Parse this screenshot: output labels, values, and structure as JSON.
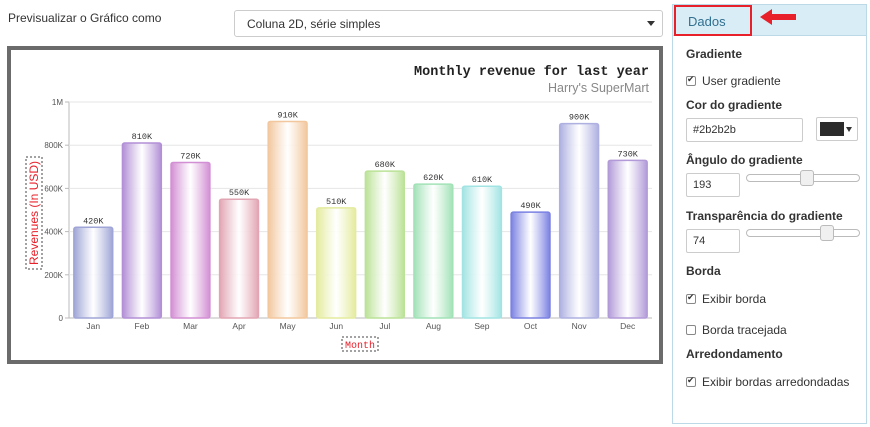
{
  "preview": {
    "label": "Previsualizar o Gráfico como",
    "selected": "Coluna 2D, série simples"
  },
  "panel": {
    "tab_label": "Dados",
    "gradient_title": "Gradiente",
    "use_gradient_label": "User gradiente",
    "use_gradient_checked": true,
    "gradient_color_title": "Cor do gradiente",
    "gradient_color_value": "#2b2b2b",
    "gradient_angle_title": "Ângulo do gradiente",
    "gradient_angle_value": "193",
    "gradient_angle_max": 360,
    "gradient_transparency_title": "Transparência do gradiente",
    "gradient_transparency_value": "74",
    "gradient_transparency_max": 100,
    "border_title": "Borda",
    "show_border_label": "Exibir borda",
    "show_border_checked": true,
    "dashed_border_label": "Borda tracejada",
    "dashed_border_checked": false,
    "rounding_title": "Arredondamento",
    "rounded_borders_label": "Exibir bordas arredondadas",
    "rounded_borders_checked": true
  },
  "colors": {
    "tab_highlight": "#e8202a",
    "panel_header_bg": "#d9edf7",
    "panel_tab_text": "#31708f",
    "chart_frame": "#6b6b6b"
  },
  "chart_data": {
    "type": "bar",
    "title": "Monthly revenue for last year",
    "subtitle": "Harry's SuperMart",
    "xlabel": "Month",
    "ylabel": "Revenues (In USD)",
    "ylim": [
      0,
      1000000
    ],
    "yticks": [
      0,
      200000,
      400000,
      600000,
      800000,
      1000000
    ],
    "ytick_labels": [
      "0",
      "200K",
      "400K",
      "600K",
      "800K",
      "1M"
    ],
    "categories": [
      "Jan",
      "Feb",
      "Mar",
      "Apr",
      "May",
      "Jun",
      "Jul",
      "Aug",
      "Sep",
      "Oct",
      "Nov",
      "Dec"
    ],
    "values": [
      420000,
      810000,
      720000,
      550000,
      910000,
      510000,
      680000,
      620000,
      610000,
      490000,
      900000,
      730000
    ],
    "value_labels": [
      "420K",
      "810K",
      "720K",
      "550K",
      "910K",
      "510K",
      "680K",
      "620K",
      "610K",
      "490K",
      "900K",
      "730K"
    ],
    "colors": [
      "#9fa5d6",
      "#b28fd6",
      "#d38fd4",
      "#e2a5b3",
      "#f2c79d",
      "#e4eb9e",
      "#bbe297",
      "#a2e2b7",
      "#a2e4e3",
      "#7b81e2",
      "#aeb0e1",
      "#b29ad9"
    ],
    "grid": true
  }
}
